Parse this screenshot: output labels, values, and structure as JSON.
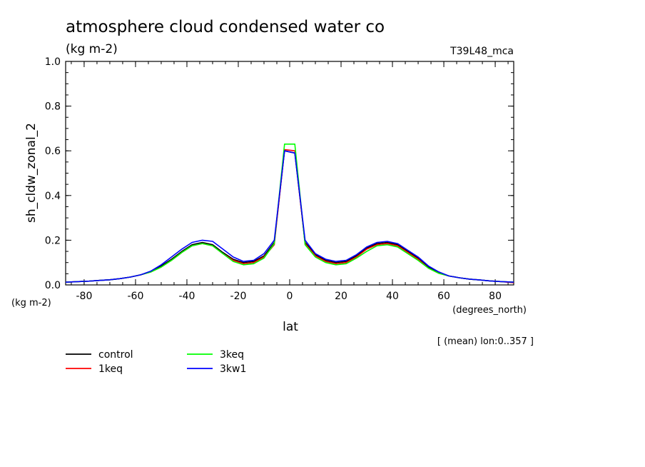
{
  "header": {
    "title": "atmosphere cloud condensed water co",
    "units": "(kg m-2)",
    "run_id": "T39L48_mca"
  },
  "chart_data": {
    "type": "line",
    "title": "atmosphere cloud condensed water co",
    "ylabel": "sh_cldw_zonal_2",
    "y_units": "(kg m-2)",
    "xlabel": "lat",
    "x_units": "(degrees_north)",
    "averaging_note": "[ (mean) lon:0..357 ]",
    "xlim": [
      -87.2,
      87.2
    ],
    "ylim": [
      0.0,
      1.0
    ],
    "x_ticks": [
      -80,
      -60,
      -40,
      -20,
      0,
      20,
      40,
      60,
      80
    ],
    "x_tick_labels": [
      "-80",
      "-60",
      "-40",
      "-20",
      "0",
      "20",
      "40",
      "60",
      "80"
    ],
    "y_ticks": [
      0.0,
      0.2,
      0.4,
      0.6,
      0.8,
      1.0
    ],
    "y_tick_labels": [
      "0.0",
      "0.2",
      "0.4",
      "0.6",
      "0.8",
      "1.0"
    ],
    "x": [
      -87.2,
      -82,
      -78,
      -74,
      -70,
      -66,
      -62,
      -58,
      -54,
      -50,
      -46,
      -42,
      -38,
      -34,
      -30,
      -26,
      -22,
      -18,
      -14,
      -10,
      -6,
      -2,
      2,
      6,
      10,
      14,
      18,
      22,
      26,
      30,
      34,
      38,
      42,
      46,
      50,
      54,
      58,
      62,
      66,
      70,
      74,
      78,
      82,
      87.2
    ],
    "series": [
      {
        "name": "control",
        "color": "#000000",
        "values": [
          0.012,
          0.015,
          0.017,
          0.02,
          0.023,
          0.028,
          0.035,
          0.045,
          0.06,
          0.085,
          0.115,
          0.15,
          0.18,
          0.19,
          0.18,
          0.145,
          0.115,
          0.1,
          0.105,
          0.13,
          0.19,
          0.6,
          0.59,
          0.19,
          0.135,
          0.11,
          0.1,
          0.105,
          0.13,
          0.165,
          0.185,
          0.19,
          0.18,
          0.15,
          0.12,
          0.08,
          0.055,
          0.04,
          0.032,
          0.026,
          0.022,
          0.018,
          0.015,
          0.012
        ]
      },
      {
        "name": "1keq",
        "color": "#ff0000",
        "values": [
          0.012,
          0.015,
          0.017,
          0.02,
          0.023,
          0.028,
          0.035,
          0.045,
          0.058,
          0.08,
          0.11,
          0.145,
          0.175,
          0.185,
          0.175,
          0.14,
          0.11,
          0.095,
          0.1,
          0.125,
          0.18,
          0.605,
          0.6,
          0.185,
          0.13,
          0.105,
          0.095,
          0.1,
          0.125,
          0.16,
          0.18,
          0.185,
          0.175,
          0.145,
          0.115,
          0.075,
          0.052,
          0.04,
          0.032,
          0.026,
          0.022,
          0.018,
          0.015,
          0.01
        ]
      },
      {
        "name": "3keq",
        "color": "#00ff00",
        "values": [
          0.012,
          0.015,
          0.017,
          0.02,
          0.023,
          0.028,
          0.035,
          0.045,
          0.058,
          0.08,
          0.11,
          0.145,
          0.175,
          0.185,
          0.175,
          0.14,
          0.105,
          0.09,
          0.095,
          0.12,
          0.185,
          0.63,
          0.63,
          0.18,
          0.125,
          0.1,
          0.09,
          0.095,
          0.12,
          0.15,
          0.175,
          0.18,
          0.17,
          0.14,
          0.11,
          0.075,
          0.052,
          0.04,
          0.032,
          0.026,
          0.022,
          0.018,
          0.015,
          0.012
        ]
      },
      {
        "name": "3kw1",
        "color": "#0000ff",
        "values": [
          0.012,
          0.015,
          0.017,
          0.02,
          0.023,
          0.028,
          0.035,
          0.045,
          0.062,
          0.09,
          0.125,
          0.16,
          0.19,
          0.2,
          0.195,
          0.16,
          0.125,
          0.105,
          0.11,
          0.14,
          0.2,
          0.6,
          0.59,
          0.2,
          0.14,
          0.115,
          0.105,
          0.11,
          0.135,
          0.17,
          0.19,
          0.195,
          0.185,
          0.155,
          0.125,
          0.085,
          0.058,
          0.04,
          0.032,
          0.026,
          0.022,
          0.018,
          0.015,
          0.012
        ]
      }
    ],
    "legend": [
      {
        "label": "control",
        "color": "#000000"
      },
      {
        "label": "1keq",
        "color": "#ff0000"
      },
      {
        "label": "3keq",
        "color": "#00ff00"
      },
      {
        "label": "3kw1",
        "color": "#0000ff"
      }
    ]
  }
}
